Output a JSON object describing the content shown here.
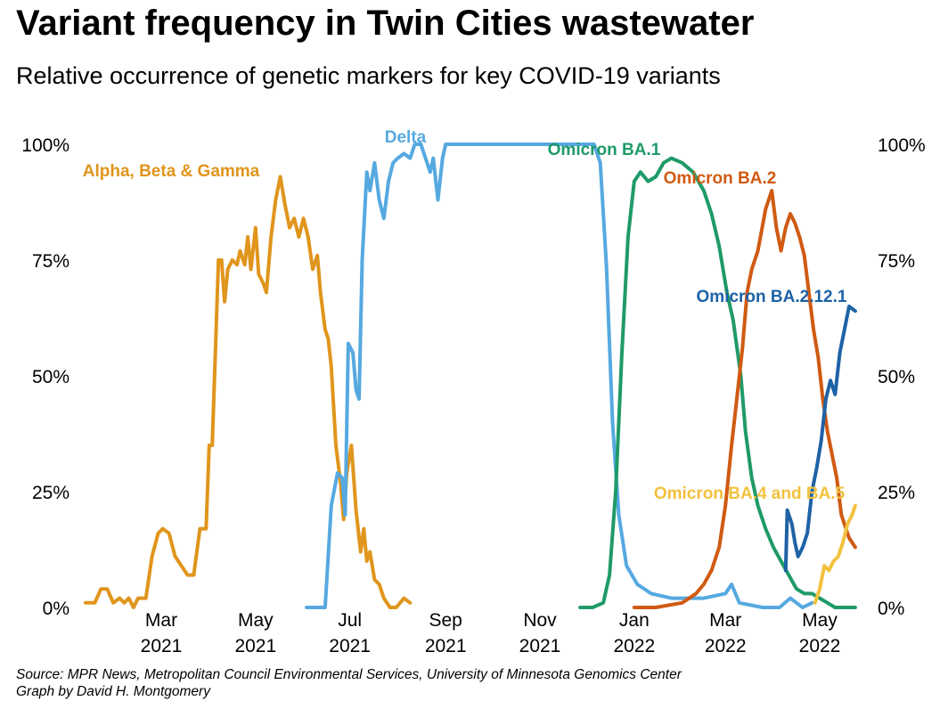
{
  "title": "Variant frequency in Twin Cities wastewater",
  "subtitle": "Relative occurrence of genetic markers for key COVID-19 variants",
  "source_line1": "Source: MPR News, Metropolitan Council Environmental Services, University of Minnesota Genomics Center",
  "source_line2": "Graph by David H. Montgomery",
  "colors": {
    "alpha": "#E0951C",
    "delta": "#56A9E0",
    "ba1": "#1F9A68",
    "ba2": "#D05A12",
    "ba2121": "#1E62A6",
    "ba45": "#F2C13E"
  },
  "chart_data": {
    "type": "line",
    "title": "Variant frequency in Twin Cities wastewater",
    "subtitle": "Relative occurrence of genetic markers for key COVID-19 variants",
    "xlabel": "",
    "ylabel": "",
    "xlim": [
      "2021-01-10",
      "2022-06-15"
    ],
    "ylim": [
      0,
      100
    ],
    "y_ticks": [
      {
        "value": 0,
        "label": "0%"
      },
      {
        "value": 25,
        "label": "25%"
      },
      {
        "value": 50,
        "label": "50%"
      },
      {
        "value": 75,
        "label": "75%"
      },
      {
        "value": 100,
        "label": "100%"
      }
    ],
    "x_ticks": [
      {
        "date": "2021-03-01",
        "month": "Mar",
        "year": "2021"
      },
      {
        "date": "2021-05-01",
        "month": "May",
        "year": "2021"
      },
      {
        "date": "2021-07-01",
        "month": "Jul",
        "year": "2021"
      },
      {
        "date": "2021-09-01",
        "month": "Sep",
        "year": "2021"
      },
      {
        "date": "2021-11-01",
        "month": "Nov",
        "year": "2021"
      },
      {
        "date": "2022-01-01",
        "month": "Jan",
        "year": "2022"
      },
      {
        "date": "2022-03-01",
        "month": "Mar",
        "year": "2022"
      },
      {
        "date": "2022-05-01",
        "month": "May",
        "year": "2022"
      }
    ],
    "grid": false,
    "legend": "direct labels",
    "series": [
      {
        "name": "Alpha, Beta & Gamma",
        "color": "#E0951C",
        "points": [
          [
            "2021-01-11",
            1
          ],
          [
            "2021-01-17",
            1
          ],
          [
            "2021-01-21",
            4
          ],
          [
            "2021-01-25",
            4
          ],
          [
            "2021-01-29",
            1
          ],
          [
            "2021-02-02",
            2
          ],
          [
            "2021-02-05",
            1
          ],
          [
            "2021-02-08",
            2
          ],
          [
            "2021-02-11",
            0
          ],
          [
            "2021-02-14",
            2
          ],
          [
            "2021-02-19",
            2
          ],
          [
            "2021-02-23",
            11
          ],
          [
            "2021-02-27",
            16
          ],
          [
            "2021-03-02",
            17
          ],
          [
            "2021-03-06",
            16
          ],
          [
            "2021-03-10",
            11
          ],
          [
            "2021-03-14",
            9
          ],
          [
            "2021-03-18",
            7
          ],
          [
            "2021-03-22",
            7
          ],
          [
            "2021-03-26",
            17
          ],
          [
            "2021-03-30",
            17
          ],
          [
            "2021-04-01",
            35
          ],
          [
            "2021-04-03",
            35
          ],
          [
            "2021-04-05",
            55
          ],
          [
            "2021-04-07",
            75
          ],
          [
            "2021-04-09",
            75
          ],
          [
            "2021-04-11",
            66
          ],
          [
            "2021-04-13",
            73
          ],
          [
            "2021-04-16",
            75
          ],
          [
            "2021-04-19",
            74
          ],
          [
            "2021-04-21",
            77
          ],
          [
            "2021-04-24",
            74
          ],
          [
            "2021-04-26",
            80
          ],
          [
            "2021-04-28",
            73
          ],
          [
            "2021-05-01",
            82
          ],
          [
            "2021-05-03",
            72
          ],
          [
            "2021-05-06",
            70
          ],
          [
            "2021-05-08",
            68
          ],
          [
            "2021-05-11",
            80
          ],
          [
            "2021-05-14",
            88
          ],
          [
            "2021-05-17",
            93
          ],
          [
            "2021-05-20",
            87
          ],
          [
            "2021-05-23",
            82
          ],
          [
            "2021-05-26",
            84
          ],
          [
            "2021-05-29",
            80
          ],
          [
            "2021-06-01",
            84
          ],
          [
            "2021-06-04",
            80
          ],
          [
            "2021-06-07",
            73
          ],
          [
            "2021-06-10",
            76
          ],
          [
            "2021-06-12",
            68
          ],
          [
            "2021-06-15",
            60
          ],
          [
            "2021-06-17",
            58
          ],
          [
            "2021-06-19",
            52
          ],
          [
            "2021-06-22",
            35
          ],
          [
            "2021-06-25",
            27
          ],
          [
            "2021-06-27",
            19
          ],
          [
            "2021-06-29",
            29
          ],
          [
            "2021-07-02",
            35
          ],
          [
            "2021-07-05",
            21
          ],
          [
            "2021-07-08",
            12
          ],
          [
            "2021-07-10",
            17
          ],
          [
            "2021-07-12",
            10
          ],
          [
            "2021-07-14",
            12
          ],
          [
            "2021-07-17",
            6
          ],
          [
            "2021-07-20",
            5
          ],
          [
            "2021-07-23",
            2
          ],
          [
            "2021-07-27",
            0
          ],
          [
            "2021-07-31",
            0
          ],
          [
            "2021-08-05",
            2
          ],
          [
            "2021-08-09",
            1
          ]
        ]
      },
      {
        "name": "Delta",
        "color": "#56A9E0",
        "points": [
          [
            "2021-06-03",
            0
          ],
          [
            "2021-06-15",
            0
          ],
          [
            "2021-06-19",
            22
          ],
          [
            "2021-06-23",
            29
          ],
          [
            "2021-06-26",
            28
          ],
          [
            "2021-06-28",
            20
          ],
          [
            "2021-06-30",
            57
          ],
          [
            "2021-07-03",
            55
          ],
          [
            "2021-07-05",
            47
          ],
          [
            "2021-07-07",
            45
          ],
          [
            "2021-07-09",
            75
          ],
          [
            "2021-07-12",
            94
          ],
          [
            "2021-07-14",
            90
          ],
          [
            "2021-07-17",
            96
          ],
          [
            "2021-07-20",
            88
          ],
          [
            "2021-07-23",
            84
          ],
          [
            "2021-07-26",
            92
          ],
          [
            "2021-07-29",
            96
          ],
          [
            "2021-08-01",
            97
          ],
          [
            "2021-08-05",
            98
          ],
          [
            "2021-08-09",
            97
          ],
          [
            "2021-08-12",
            100
          ],
          [
            "2021-08-16",
            100
          ],
          [
            "2021-08-19",
            97
          ],
          [
            "2021-08-22",
            94
          ],
          [
            "2021-08-24",
            97
          ],
          [
            "2021-08-27",
            88
          ],
          [
            "2021-08-30",
            97
          ],
          [
            "2021-09-01",
            100
          ],
          [
            "2021-09-20",
            100
          ],
          [
            "2021-10-20",
            100
          ],
          [
            "2021-11-20",
            100
          ],
          [
            "2021-12-06",
            100
          ],
          [
            "2021-12-10",
            96
          ],
          [
            "2021-12-14",
            74
          ],
          [
            "2021-12-18",
            40
          ],
          [
            "2021-12-22",
            20
          ],
          [
            "2021-12-27",
            9
          ],
          [
            "2022-01-03",
            5
          ],
          [
            "2022-01-12",
            3
          ],
          [
            "2022-01-25",
            2
          ],
          [
            "2022-02-15",
            2
          ],
          [
            "2022-03-01",
            3
          ],
          [
            "2022-03-05",
            5
          ],
          [
            "2022-03-10",
            1
          ],
          [
            "2022-03-25",
            0
          ],
          [
            "2022-04-05",
            0
          ],
          [
            "2022-04-12",
            2
          ],
          [
            "2022-04-20",
            0
          ],
          [
            "2022-04-26",
            1
          ]
        ]
      },
      {
        "name": "Omicron BA.1",
        "color": "#1F9A68",
        "points": [
          [
            "2021-11-27",
            0
          ],
          [
            "2021-12-05",
            0
          ],
          [
            "2021-12-12",
            1
          ],
          [
            "2021-12-16",
            7
          ],
          [
            "2021-12-20",
            25
          ],
          [
            "2021-12-24",
            55
          ],
          [
            "2021-12-28",
            80
          ],
          [
            "2022-01-01",
            92
          ],
          [
            "2022-01-05",
            94
          ],
          [
            "2022-01-10",
            92
          ],
          [
            "2022-01-15",
            93
          ],
          [
            "2022-01-20",
            96
          ],
          [
            "2022-01-25",
            97
          ],
          [
            "2022-02-01",
            96
          ],
          [
            "2022-02-08",
            94
          ],
          [
            "2022-02-15",
            90
          ],
          [
            "2022-02-20",
            85
          ],
          [
            "2022-02-25",
            78
          ],
          [
            "2022-03-02",
            68
          ],
          [
            "2022-03-06",
            62
          ],
          [
            "2022-03-11",
            50
          ],
          [
            "2022-03-14",
            38
          ],
          [
            "2022-03-18",
            28
          ],
          [
            "2022-03-22",
            22
          ],
          [
            "2022-03-27",
            17
          ],
          [
            "2022-04-01",
            13
          ],
          [
            "2022-04-06",
            10
          ],
          [
            "2022-04-11",
            7
          ],
          [
            "2022-04-16",
            4
          ],
          [
            "2022-04-21",
            3
          ],
          [
            "2022-04-26",
            3
          ],
          [
            "2022-05-01",
            2
          ],
          [
            "2022-05-06",
            1
          ],
          [
            "2022-05-11",
            0
          ],
          [
            "2022-05-20",
            0
          ],
          [
            "2022-05-24",
            0
          ]
        ]
      },
      {
        "name": "Omicron BA.2",
        "color": "#D05A12",
        "points": [
          [
            "2022-01-01",
            0
          ],
          [
            "2022-01-15",
            0
          ],
          [
            "2022-02-01",
            1
          ],
          [
            "2022-02-10",
            3
          ],
          [
            "2022-02-15",
            5
          ],
          [
            "2022-02-20",
            8
          ],
          [
            "2022-02-25",
            13
          ],
          [
            "2022-03-01",
            22
          ],
          [
            "2022-03-05",
            35
          ],
          [
            "2022-03-09",
            47
          ],
          [
            "2022-03-12",
            56
          ],
          [
            "2022-03-15",
            68
          ],
          [
            "2022-03-18",
            73
          ],
          [
            "2022-03-22",
            77
          ],
          [
            "2022-03-27",
            86
          ],
          [
            "2022-03-31",
            90
          ],
          [
            "2022-04-03",
            82
          ],
          [
            "2022-04-06",
            77
          ],
          [
            "2022-04-09",
            82
          ],
          [
            "2022-04-12",
            85
          ],
          [
            "2022-04-15",
            83
          ],
          [
            "2022-04-18",
            80
          ],
          [
            "2022-04-21",
            76
          ],
          [
            "2022-04-24",
            68
          ],
          [
            "2022-04-27",
            60
          ],
          [
            "2022-04-30",
            54
          ],
          [
            "2022-05-03",
            45
          ],
          [
            "2022-05-06",
            38
          ],
          [
            "2022-05-09",
            33
          ],
          [
            "2022-05-12",
            28
          ],
          [
            "2022-05-15",
            20
          ],
          [
            "2022-05-20",
            15
          ],
          [
            "2022-05-24",
            13
          ]
        ]
      },
      {
        "name": "Omicron BA.2.12.1",
        "color": "#1E62A6",
        "points": [
          [
            "2022-04-09",
            8
          ],
          [
            "2022-04-10",
            21
          ],
          [
            "2022-04-13",
            18
          ],
          [
            "2022-04-15",
            14
          ],
          [
            "2022-04-17",
            11
          ],
          [
            "2022-04-20",
            13
          ],
          [
            "2022-04-23",
            16
          ],
          [
            "2022-04-26",
            25
          ],
          [
            "2022-04-29",
            30
          ],
          [
            "2022-05-02",
            36
          ],
          [
            "2022-05-05",
            45
          ],
          [
            "2022-05-08",
            49
          ],
          [
            "2022-05-11",
            46
          ],
          [
            "2022-05-14",
            55
          ],
          [
            "2022-05-17",
            60
          ],
          [
            "2022-05-20",
            65
          ],
          [
            "2022-05-24",
            64
          ]
        ]
      },
      {
        "name": "Omicron BA.4 and BA.5",
        "color": "#F2C13E",
        "points": [
          [
            "2022-04-28",
            1
          ],
          [
            "2022-05-01",
            4
          ],
          [
            "2022-05-04",
            9
          ],
          [
            "2022-05-07",
            8
          ],
          [
            "2022-05-10",
            10
          ],
          [
            "2022-05-13",
            11
          ],
          [
            "2022-05-16",
            14
          ],
          [
            "2022-05-19",
            18
          ],
          [
            "2022-05-22",
            20
          ],
          [
            "2022-05-24",
            22
          ]
        ]
      }
    ],
    "labels": [
      {
        "text": "Alpha, Beta & Gamma",
        "color": "#E0951C"
      },
      {
        "text": "Delta",
        "color": "#56A9E0"
      },
      {
        "text": "Omicron BA.1",
        "color": "#1F9A68"
      },
      {
        "text": "Omicron BA.2",
        "color": "#D05A12"
      },
      {
        "text": "Omicron BA.2.12.1",
        "color": "#1E62A6"
      },
      {
        "text": "Omicron BA.4 and BA.5",
        "color": "#F2C13E"
      }
    ]
  }
}
